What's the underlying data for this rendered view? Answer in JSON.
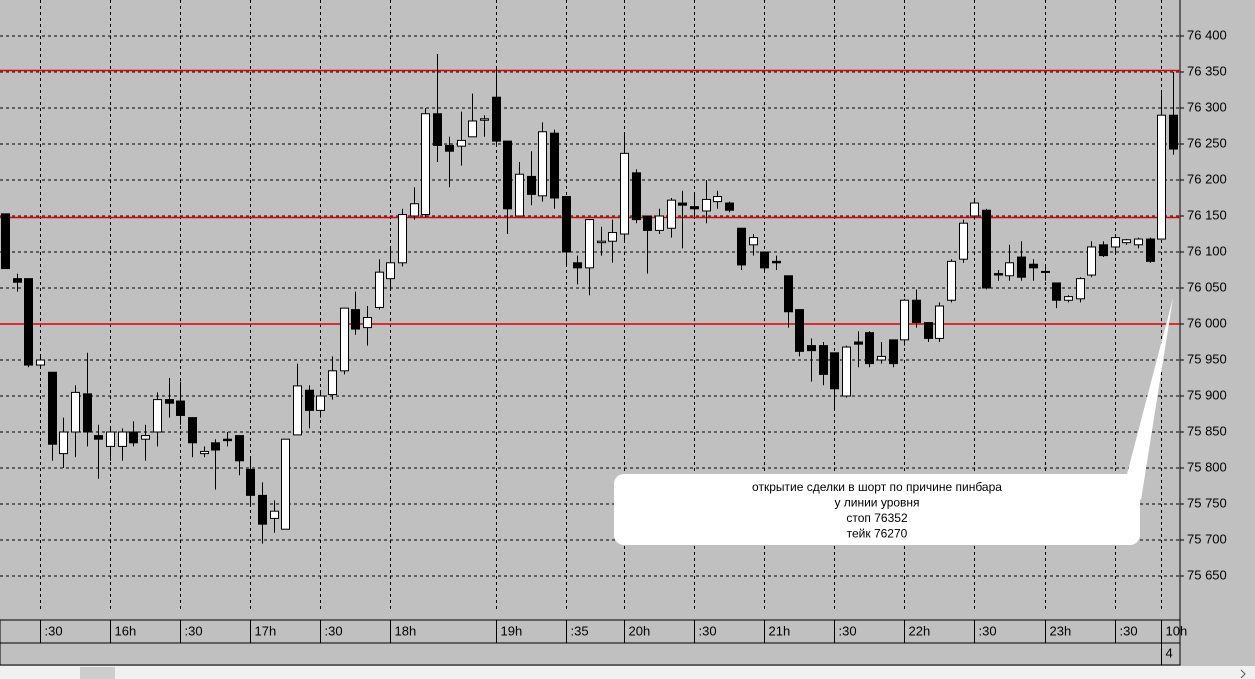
{
  "chart_data": {
    "type": "candlestick",
    "ylim": [
      75600,
      76450
    ],
    "yticks": [
      {
        "value": 76400,
        "label": "76 400"
      },
      {
        "value": 76350,
        "label": "76 350"
      },
      {
        "value": 76300,
        "label": "76 300"
      },
      {
        "value": 76250,
        "label": "76 250"
      },
      {
        "value": 76200,
        "label": "76 200"
      },
      {
        "value": 76150,
        "label": "76 150"
      },
      {
        "value": 76100,
        "label": "76 100"
      },
      {
        "value": 76050,
        "label": "76 050"
      },
      {
        "value": 76000,
        "label": "76 000"
      },
      {
        "value": 75950,
        "label": "75 950"
      },
      {
        "value": 75900,
        "label": "75 900"
      },
      {
        "value": 75850,
        "label": "75 850"
      },
      {
        "value": 75800,
        "label": "75 800"
      },
      {
        "value": 75750,
        "label": "75 750"
      },
      {
        "value": 75700,
        "label": "75 700"
      },
      {
        "value": 75650,
        "label": "75 650"
      }
    ],
    "grid": true,
    "up_color": "#ffffff",
    "down_color": "#000000",
    "categories": [
      null,
      null,
      null,
      ":30",
      null,
      null,
      null,
      null,
      null,
      "16h",
      null,
      null,
      null,
      null,
      null,
      ":30",
      null,
      null,
      null,
      null,
      null,
      "17h",
      null,
      null,
      null,
      null,
      null,
      ":30",
      null,
      null,
      null,
      null,
      null,
      "18h",
      null,
      null,
      null,
      null,
      null,
      null,
      null,
      null,
      "19h",
      null,
      null,
      null,
      null,
      null,
      ":35",
      null,
      null,
      null,
      null,
      "20h",
      null,
      null,
      null,
      null,
      null,
      ":30",
      null,
      null,
      null,
      null,
      null,
      "21h",
      null,
      null,
      null,
      null,
      null,
      ":30",
      null,
      null,
      null,
      null,
      null,
      "22h",
      null,
      null,
      null,
      null,
      null,
      ":30",
      null,
      null,
      null,
      null,
      null,
      "23h",
      null,
      null,
      null,
      null,
      null,
      ":30",
      null,
      null,
      null,
      "10h",
      null
    ],
    "open": [
      76153,
      76063,
      76063,
      75943,
      75933,
      75820,
      75850,
      75903,
      75845,
      75830,
      75830,
      75850,
      75840,
      75850,
      75895,
      75893,
      75870,
      75820,
      75835,
      75840,
      75845,
      75798,
      75762,
      75730,
      75715,
      75846,
      75908,
      75880,
      75902,
      75935,
      76020,
      75995,
      76023,
      76063,
      76085,
      76150,
      76152,
      76292,
      76248,
      76247,
      76260,
      76283,
      76315,
      76254,
      76150,
      76205,
      76178,
      76265,
      76177,
      76085,
      76078,
      76113,
      76115,
      76125,
      76210,
      76150,
      76130,
      76133,
      76168,
      76163,
      76157,
      76170,
      76168,
      76133,
      76110,
      76100,
      76087,
      76067,
      76020,
      75970,
      75970,
      75960,
      75900,
      75975,
      75988,
      75950,
      75978,
      75978,
      76033,
      76002,
      75980,
      76033,
      76090,
      76150,
      76158,
      76070,
      76067,
      76093,
      76083,
      76073,
      76057,
      76033,
      76035,
      76068,
      76110,
      76107,
      76113,
      76110,
      76118,
      76118,
      76290
    ],
    "high": [
      76153,
      76070,
      76063,
      75955,
      75933,
      75870,
      75915,
      75960,
      75860,
      75855,
      75855,
      75865,
      75860,
      75905,
      75925,
      75920,
      75870,
      75830,
      75840,
      75850,
      75845,
      75815,
      75780,
      75755,
      75840,
      75945,
      75915,
      75905,
      75955,
      76022,
      76045,
      76025,
      76090,
      76105,
      76160,
      76190,
      76300,
      76375,
      76260,
      76295,
      76320,
      76290,
      76355,
      76254,
      76225,
      76240,
      76280,
      76270,
      76177,
      76095,
      76145,
      76135,
      76145,
      76265,
      76215,
      76150,
      76160,
      76175,
      76185,
      76180,
      76200,
      76185,
      76170,
      76133,
      76125,
      76100,
      76095,
      76067,
      76020,
      75980,
      75975,
      75960,
      75970,
      75990,
      75990,
      75975,
      75978,
      76035,
      76048,
      76002,
      76030,
      76090,
      76145,
      76175,
      76160,
      76075,
      76110,
      76115,
      76090,
      76080,
      76057,
      76040,
      76065,
      76115,
      76115,
      76125,
      76118,
      76120,
      76120,
      76325,
      76350
    ],
    "low": [
      76077,
      76045,
      75940,
      75940,
      75810,
      75800,
      75815,
      75830,
      75785,
      75810,
      75810,
      75830,
      75810,
      75830,
      75870,
      75860,
      75815,
      75815,
      75770,
      75830,
      75790,
      75750,
      75695,
      75710,
      75715,
      75846,
      75855,
      75870,
      75895,
      75930,
      75985,
      75970,
      76020,
      76050,
      76080,
      76145,
      76148,
      76225,
      76190,
      76220,
      76260,
      76260,
      76250,
      76125,
      76150,
      76165,
      76170,
      76160,
      76080,
      76055,
      76040,
      76095,
      76085,
      76115,
      76140,
      76070,
      76125,
      76120,
      76105,
      76150,
      76140,
      76160,
      76155,
      76075,
      76095,
      76073,
      76075,
      75995,
      75955,
      75920,
      75915,
      75880,
      75898,
      75940,
      75940,
      75945,
      75940,
      75970,
      75995,
      75975,
      75975,
      76030,
      76085,
      76145,
      76048,
      76060,
      76060,
      76060,
      76060,
      76060,
      76022,
      76030,
      76030,
      76065,
      76093,
      76100,
      76110,
      76105,
      76085,
      76118,
      76235
    ],
    "close": [
      76077,
      76058,
      75943,
      75950,
      75833,
      75850,
      75905,
      75850,
      75840,
      75850,
      75850,
      75835,
      75845,
      75895,
      75890,
      75873,
      75835,
      75823,
      75825,
      75838,
      75810,
      75762,
      75722,
      75740,
      75840,
      75914,
      75880,
      75900,
      75935,
      76022,
      75993,
      76009,
      76072,
      76085,
      76152,
      76167,
      76292,
      76248,
      76240,
      76255,
      76282,
      76285,
      76254,
      76160,
      76208,
      76180,
      76267,
      76175,
      76100,
      76078,
      76145,
      76115,
      76127,
      76237,
      76145,
      76130,
      76150,
      76172,
      76165,
      76160,
      76173,
      76177,
      76158,
      76082,
      76120,
      76078,
      76085,
      76017,
      75962,
      75963,
      75930,
      75910,
      75968,
      75972,
      75945,
      75955,
      75945,
      76033,
      76002,
      75980,
      76025,
      76087,
      76140,
      76168,
      76050,
      76068,
      76085,
      76065,
      76078,
      76072,
      76033,
      76038,
      76063,
      76107,
      76095,
      76120,
      76117,
      76118,
      76087,
      76290,
      76243
    ],
    "levels": [
      {
        "value": 76352,
        "color": "#e00000"
      },
      {
        "value": 76148,
        "color": "#e00000"
      },
      {
        "value": 76000,
        "color": "#e00000"
      }
    ],
    "annotation": [
      "открытие сделки в шорт по причине пинбара",
      "у линии уровня",
      "стоп  76352",
      "тейк 76270"
    ],
    "day_label": "4"
  }
}
